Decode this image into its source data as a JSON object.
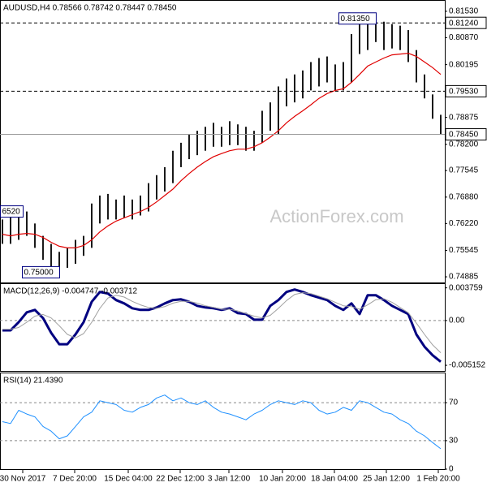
{
  "chart_data": [
    {
      "type": "ohlc",
      "title": "AUDUSD,H4  0.78566 0.78742 0.78447 0.78450",
      "xlim": [
        -0.3,
        54.5
      ],
      "ylim": [
        0.74744,
        0.81772
      ],
      "grid": false,
      "bar_color": "#1a1a1a",
      "yticks": [
        {
          "value": 0.8153,
          "label": "0.81530"
        },
        {
          "value": 0.8087,
          "label": "0.80870"
        },
        0.80195,
        0.78875,
        {
          "value": 0.782,
          "label": "0.78200"
        },
        0.77545,
        {
          "value": 0.7688,
          "label": "0.76880"
        },
        {
          "value": 0.7622,
          "label": "0.76220"
        },
        0.75545,
        0.74885
      ],
      "high": [
        0.7632,
        0.7652,
        0.7648,
        0.7652,
        0.7622,
        0.7591,
        0.7571,
        0.7551,
        0.7561,
        0.7581,
        0.7591,
        0.7672,
        0.7692,
        0.7696,
        0.7682,
        0.7692,
        0.7682,
        0.7692,
        0.7723,
        0.7743,
        0.7763,
        0.7804,
        0.7824,
        0.7844,
        0.7854,
        0.7864,
        0.7874,
        0.7864,
        0.7878,
        0.787,
        0.7864,
        0.7854,
        0.7904,
        0.7925,
        0.7965,
        0.7985,
        0.7995,
        0.8005,
        0.8026,
        0.8036,
        0.804,
        0.802,
        0.8026,
        0.8096,
        0.8127,
        0.813,
        0.8135,
        0.8127,
        0.8121,
        0.8117,
        0.8106,
        0.8056,
        0.7995,
        0.7945,
        0.7894
      ],
      "low": [
        0.7571,
        0.7571,
        0.7581,
        0.7591,
        0.7561,
        0.7531,
        0.7511,
        0.75,
        0.7511,
        0.7521,
        0.7541,
        0.7561,
        0.7622,
        0.7632,
        0.7632,
        0.7636,
        0.7632,
        0.7642,
        0.7652,
        0.7682,
        0.7702,
        0.7723,
        0.7763,
        0.7783,
        0.7793,
        0.7804,
        0.7814,
        0.7814,
        0.7818,
        0.7818,
        0.7804,
        0.7804,
        0.7824,
        0.7854,
        0.7844,
        0.7915,
        0.7925,
        0.7935,
        0.7955,
        0.7965,
        0.7975,
        0.7955,
        0.7955,
        0.7975,
        0.8046,
        0.8056,
        0.8076,
        0.8056,
        0.806,
        0.8056,
        0.8026,
        0.7975,
        0.7935,
        0.7884,
        0.7844
      ],
      "ma": {
        "color": "#e00000",
        "values": [
          0.7595,
          0.7591,
          0.7595,
          0.7597,
          0.7595,
          0.7587,
          0.7575,
          0.7565,
          0.7561,
          0.7561,
          0.7567,
          0.7581,
          0.7601,
          0.7616,
          0.7628,
          0.7636,
          0.7644,
          0.7652,
          0.7662,
          0.7676,
          0.7692,
          0.7708,
          0.7729,
          0.7747,
          0.7763,
          0.7777,
          0.7789,
          0.7797,
          0.7804,
          0.7808,
          0.7808,
          0.7814,
          0.7824,
          0.7838,
          0.7854,
          0.7874,
          0.789,
          0.7904,
          0.7919,
          0.7935,
          0.7947,
          0.7955,
          0.7959,
          0.7975,
          0.7995,
          0.8016,
          0.8026,
          0.8036,
          0.8044,
          0.8046,
          0.8048,
          0.804,
          0.8026,
          0.8012,
          0.7995
        ]
      },
      "levels": [
        {
          "value": 0.8124,
          "label": "0.81240",
          "style": "dashed"
        },
        {
          "value": 0.7953,
          "label": "0.79530",
          "style": "dashed"
        },
        {
          "value": 0.7845,
          "label": "0.78450",
          "style": "solid"
        }
      ],
      "annotations": [
        {
          "x": 46,
          "value": 0.8135,
          "label": "0.81350"
        },
        {
          "x": 7,
          "value": 0.75,
          "label": "0.75000"
        },
        {
          "x": 0,
          "value": 0.7652,
          "label": "6520"
        }
      ],
      "watermark": "ActionForex.com"
    },
    {
      "type": "line",
      "title": "MACD(12,26,9) -0.004747 -0.003712",
      "xlim": [
        -0.3,
        54.5
      ],
      "ylim": [
        -0.0058,
        0.0041
      ],
      "grid": "dashed",
      "yticks": [
        0.003759,
        {
          "value": 0,
          "label": "0.00"
        },
        -0.005152
      ],
      "series": [
        {
          "color": "#000080",
          "width": 3,
          "values": [
            -0.00113,
            -0.00113,
            -0.00019,
            0.00094,
            0.00122,
            0.00028,
            -0.00141,
            -0.00273,
            -0.00273,
            -0.0016,
            -0.00019,
            0.00216,
            0.00329,
            0.0031,
            0.00235,
            0.00197,
            0.00141,
            0.00122,
            0.00122,
            0.0015,
            0.00197,
            0.00235,
            0.00244,
            0.00216,
            0.00169,
            0.0015,
            0.00141,
            0.00122,
            0.00141,
            0.00085,
            0.00075,
            9e-05,
            9e-05,
            0.00169,
            0.00235,
            0.00329,
            0.00357,
            0.00329,
            0.00291,
            0.00263,
            0.00235,
            0.00169,
            0.00122,
            0.00197,
            0.00075,
            0.00291,
            0.00291,
            0.00235,
            0.00169,
            0.00122,
            0.00075,
            -0.0016,
            -0.00301,
            -0.004,
            -0.004747
          ]
        },
        {
          "color": "#a0a0a0",
          "width": 1,
          "values": [
            -0.001,
            -0.001,
            -0.0008,
            -0.0002,
            0.0005,
            0.0007,
            0.0003,
            -0.0006,
            -0.0016,
            -0.002,
            -0.0015,
            -0.0002,
            0.0014,
            0.0026,
            0.0029,
            0.0027,
            0.0022,
            0.0018,
            0.0015,
            0.0014,
            0.0016,
            0.002,
            0.0022,
            0.0022,
            0.002,
            0.0017,
            0.0015,
            0.0013,
            0.0013,
            0.0011,
            0.0008,
            0.0005,
            0.0003,
            0.0006,
            0.0014,
            0.0023,
            0.003,
            0.0032,
            0.0031,
            0.0028,
            0.0025,
            0.0021,
            0.0017,
            0.0016,
            0.0013,
            0.0018,
            0.0024,
            0.0025,
            0.0021,
            0.0015,
            0.0009,
            -0.0003,
            -0.0016,
            -0.0028,
            -0.003712
          ]
        }
      ]
    },
    {
      "type": "line",
      "title": "RSI(14) 21.4390",
      "xlim": [
        -0.3,
        54.5
      ],
      "ylim": [
        0,
        100
      ],
      "grid": "dashed",
      "yticks": [
        70,
        30,
        0
      ],
      "series": [
        {
          "color": "#1e90ff",
          "width": 1,
          "values": [
            50,
            48,
            62,
            58,
            55,
            45,
            40,
            32,
            35,
            45,
            55,
            60,
            72,
            70,
            68,
            62,
            60,
            65,
            68,
            75,
            78,
            72,
            75,
            70,
            68,
            72,
            65,
            60,
            58,
            55,
            52,
            58,
            62,
            68,
            72,
            70,
            68,
            72,
            70,
            62,
            58,
            60,
            65,
            62,
            72,
            70,
            65,
            60,
            58,
            52,
            48,
            40,
            35,
            28,
            21.439
          ]
        }
      ],
      "xticks": [
        {
          "value": 2.5,
          "label": "30 Nov 2017"
        },
        {
          "value": 8.9,
          "label": "7 Dec 20:00"
        },
        {
          "value": 15.5,
          "label": "15 Dec 04:00"
        },
        {
          "value": 21.9,
          "label": "22 Dec 12:00"
        },
        {
          "value": 27.9,
          "label": "3 Jan 12:00"
        },
        {
          "value": 34.5,
          "label": "10 Jan 20:00"
        },
        {
          "value": 40.9,
          "label": "18 Jan 04:00"
        },
        {
          "value": 47.3,
          "label": "25 Jan 12:00"
        },
        {
          "value": 53.7,
          "label": "1 Feb 20:00"
        }
      ]
    }
  ]
}
